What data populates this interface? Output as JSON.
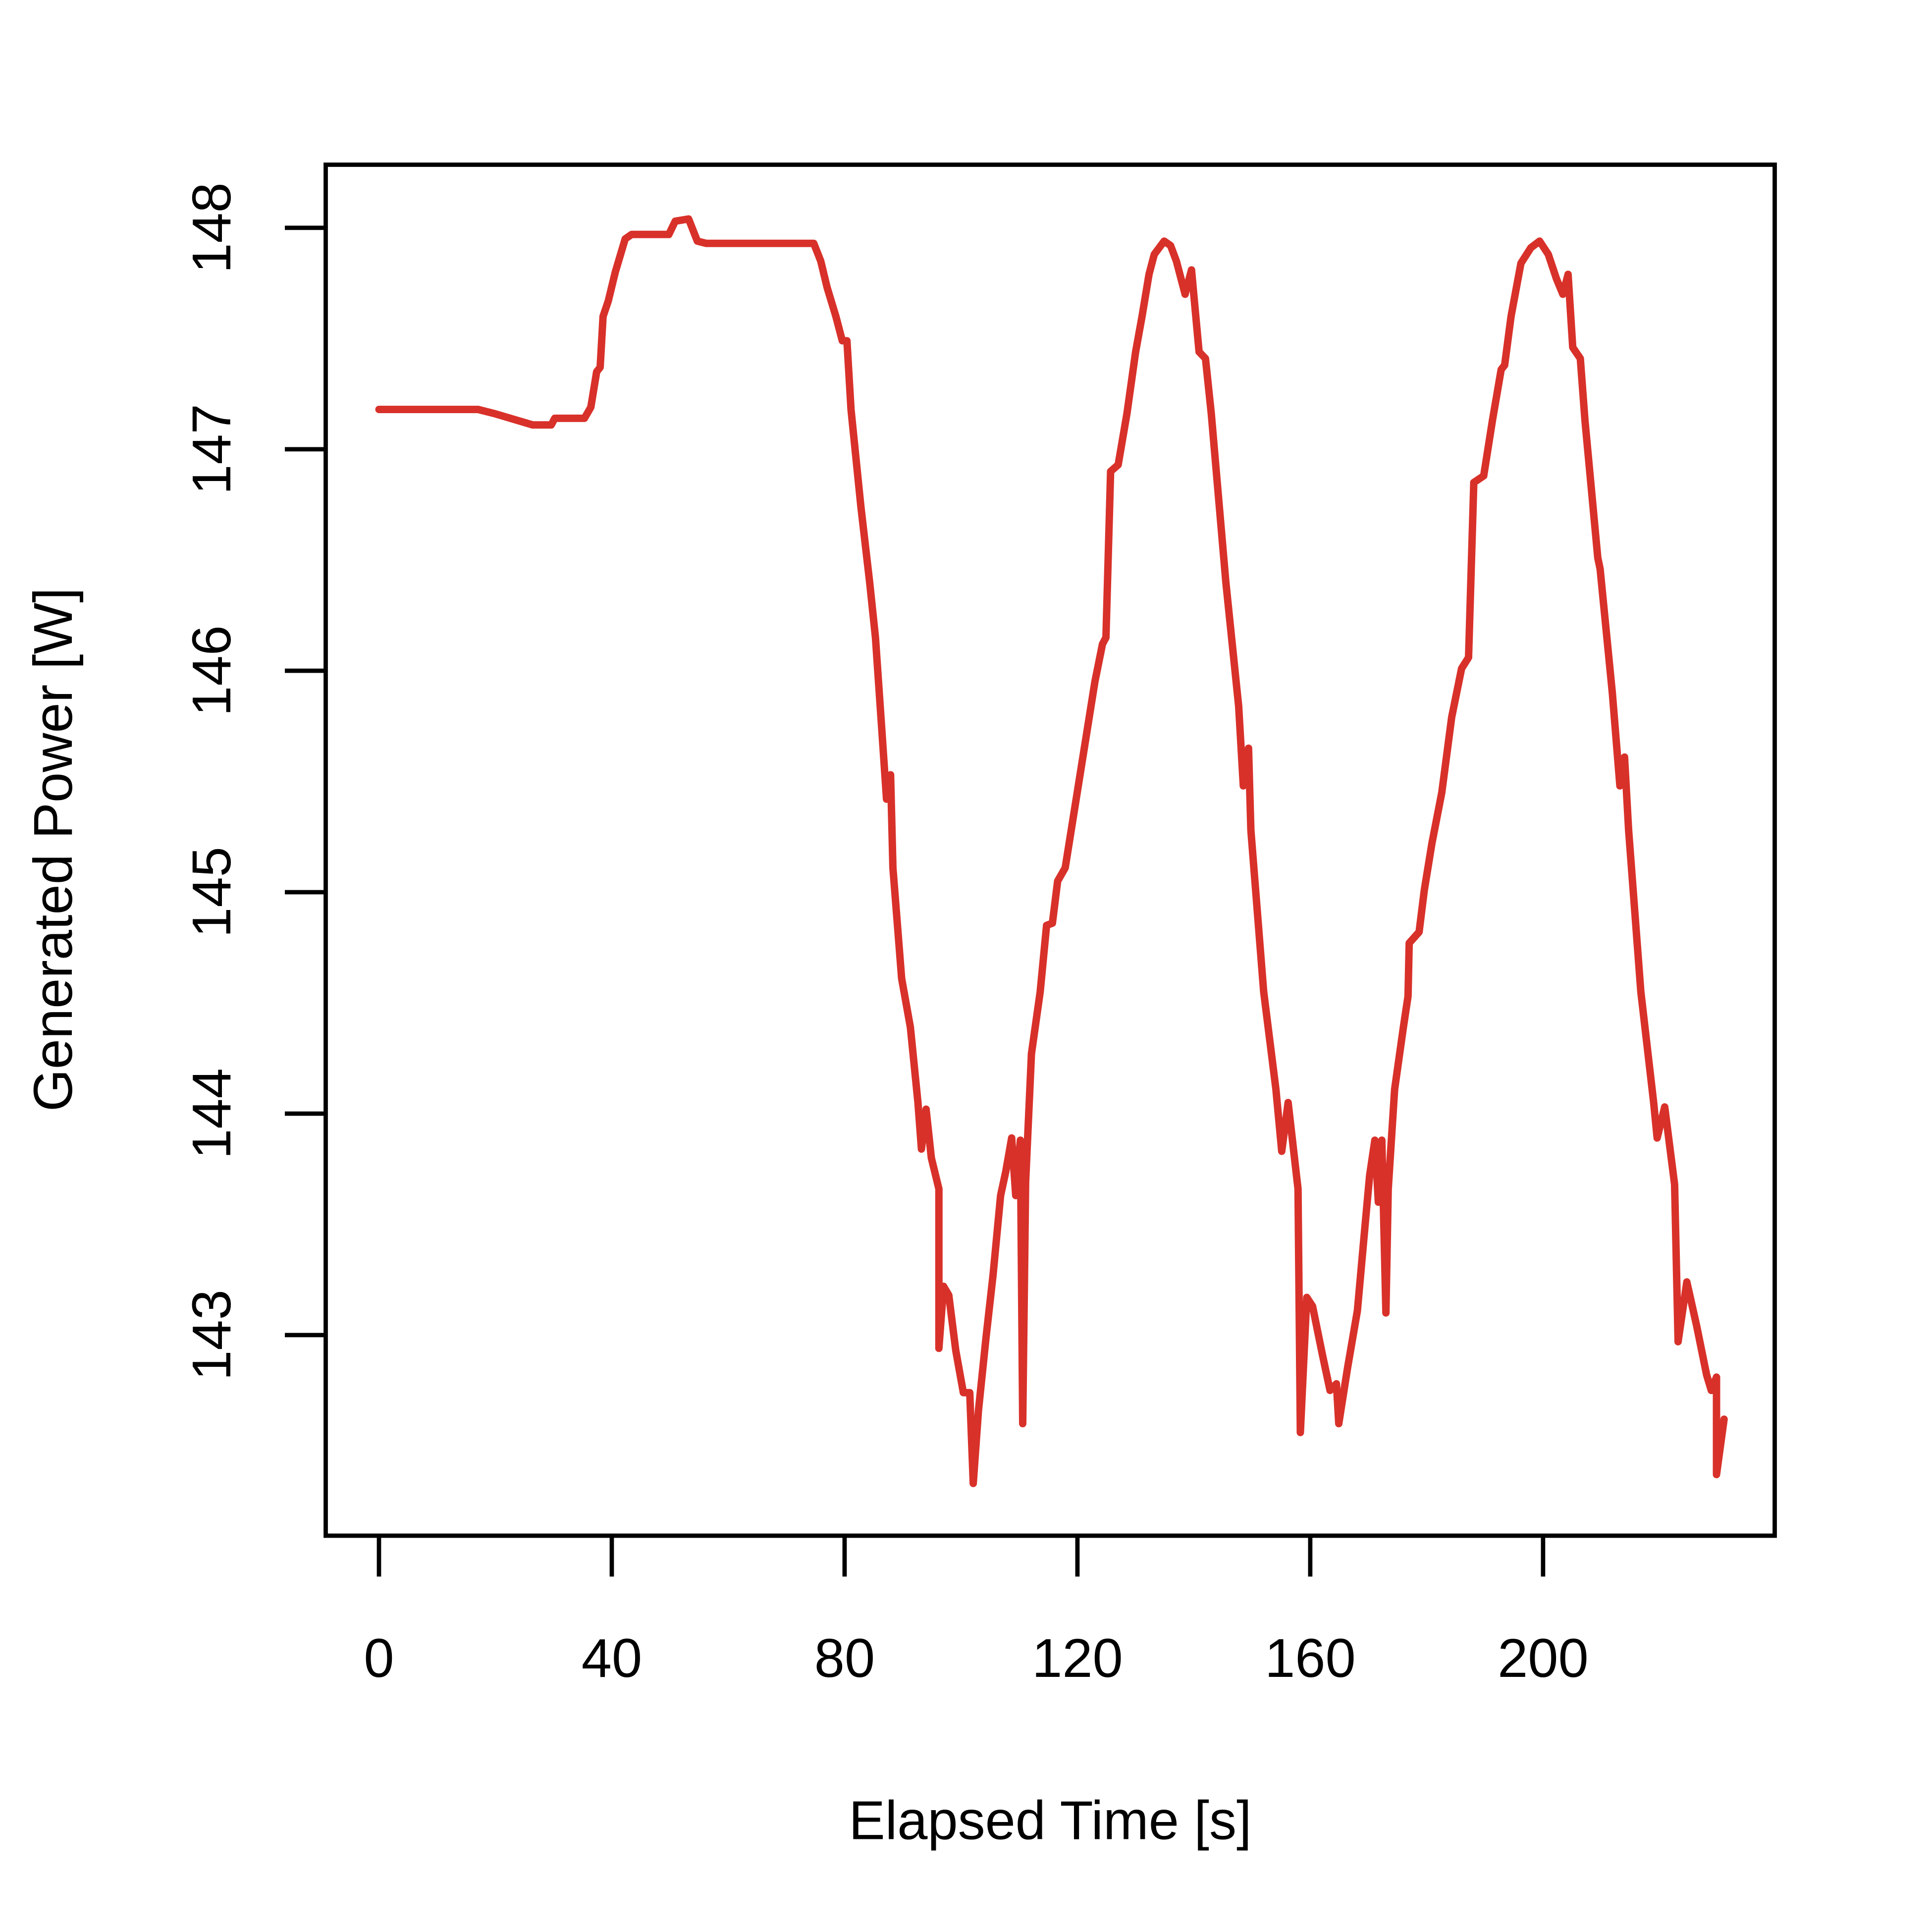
{
  "chart_data": {
    "type": "line",
    "xlabel": "Elapsed Time [s]",
    "ylabel": "Generated Power [W]",
    "color": "#d8312a",
    "xlim": [
      -9.15,
      239.8
    ],
    "ylim": [
      142.094,
      148.285
    ],
    "xticks": [
      0,
      40,
      80,
      120,
      160,
      200
    ],
    "yticks": [
      143,
      144,
      145,
      146,
      147,
      148
    ],
    "x": [
      0,
      7.2,
      17,
      20,
      26.4,
      29.6,
      30.2,
      35.3,
      36.4,
      37.4,
      38,
      38.5,
      39.4,
      40.6,
      42.3,
      43.4,
      49.8,
      50.9,
      53.2,
      54.7,
      56.2,
      70.4,
      74.7,
      75.9,
      77,
      78.5,
      79.6,
      80.4,
      81.1,
      82.8,
      84.3,
      85.3,
      86.4,
      87.2,
      87.9,
      88.3,
      89.8,
      91.3,
      92.6,
      93.2,
      94,
      94.9,
      96.2,
      96.2,
      97,
      97.9,
      99.1,
      100.4,
      101.5,
      102.1,
      103,
      104.3,
      105.5,
      106.8,
      107.7,
      108.7,
      109.4,
      110.2,
      110.6,
      111.1,
      112.1,
      113.6,
      114.7,
      115.7,
      116.6,
      117.9,
      119.6,
      121.3,
      123,
      124.3,
      124.9,
      125.7,
      127,
      128.5,
      130,
      131.1,
      132.3,
      133.2,
      134.9,
      136,
      137,
      138.5,
      139.6,
      140.9,
      142,
      143,
      145.5,
      147.7,
      148.5,
      149.4,
      149.8,
      152,
      154.1,
      155.1,
      156.2,
      157.9,
      158.3,
      159.4,
      160.4,
      162.1,
      163.4,
      164.5,
      164.9,
      166.4,
      168.1,
      169.4,
      170.2,
      171.1,
      171.7,
      172.3,
      173,
      173.4,
      174.5,
      176,
      176.8,
      177,
      178.7,
      179.6,
      180.9,
      182.6,
      184.3,
      186,
      187.2,
      188.1,
      189.8,
      191.3,
      192.8,
      193.4,
      194.5,
      195.7,
      196.2,
      197.9,
      199.4,
      200.9,
      202.3,
      203.4,
      204.3,
      205.1,
      206.4,
      207.2,
      209.4,
      209.8,
      211.9,
      213.2,
      214,
      214.7,
      216.8,
      219,
      219.6,
      220.9,
      222.6,
      223.2,
      224.7,
      226.4,
      228.1,
      228.9,
      229.8,
      229.8,
      231.1
    ],
    "series": [
      {
        "values": [
          147.18,
          147.18,
          147.18,
          147.16,
          147.11,
          147.11,
          147.14,
          147.14,
          147.19,
          147.35,
          147.37,
          147.6,
          147.67,
          147.8,
          147.95,
          147.97,
          147.97,
          148.03,
          148.04,
          147.94,
          147.93,
          147.93,
          147.93,
          147.85,
          147.73,
          147.6,
          147.49,
          147.49,
          147.18,
          146.74,
          146.4,
          146.15,
          145.73,
          145.42,
          145.53,
          145.11,
          144.61,
          144.39,
          144.05,
          143.84,
          144.02,
          143.8,
          143.66,
          142.94,
          143.22,
          143.18,
          142.93,
          142.74,
          142.74,
          142.33,
          142.66,
          142.99,
          143.27,
          143.63,
          143.74,
          143.89,
          143.63,
          143.88,
          142.6,
          143.69,
          144.27,
          144.55,
          144.85,
          144.86,
          145.05,
          145.11,
          145.39,
          145.67,
          145.95,
          146.12,
          146.15,
          146.9,
          146.93,
          147.16,
          147.44,
          147.6,
          147.79,
          147.88,
          147.94,
          147.92,
          147.85,
          147.7,
          147.81,
          147.44,
          147.41,
          147.16,
          146.4,
          145.84,
          145.48,
          145.65,
          145.28,
          144.55,
          144.11,
          143.83,
          144.05,
          143.66,
          142.56,
          143.17,
          143.13,
          142.91,
          142.75,
          142.78,
          142.6,
          142.85,
          143.11,
          143.49,
          143.72,
          143.88,
          143.6,
          143.88,
          143.1,
          143.66,
          144.11,
          144.39,
          144.53,
          144.77,
          144.82,
          145.01,
          145.22,
          145.45,
          145.79,
          146.01,
          146.06,
          146.85,
          146.88,
          147.13,
          147.36,
          147.38,
          147.6,
          147.77,
          147.84,
          147.91,
          147.94,
          147.88,
          147.77,
          147.7,
          147.79,
          147.46,
          147.41,
          147.13,
          146.51,
          146.46,
          145.9,
          145.48,
          145.61,
          145.28,
          144.55,
          144.05,
          143.89,
          144.03,
          143.68,
          142.97,
          143.24,
          143.04,
          142.82,
          142.75,
          142.81,
          142.37,
          142.62
        ]
      }
    ]
  }
}
